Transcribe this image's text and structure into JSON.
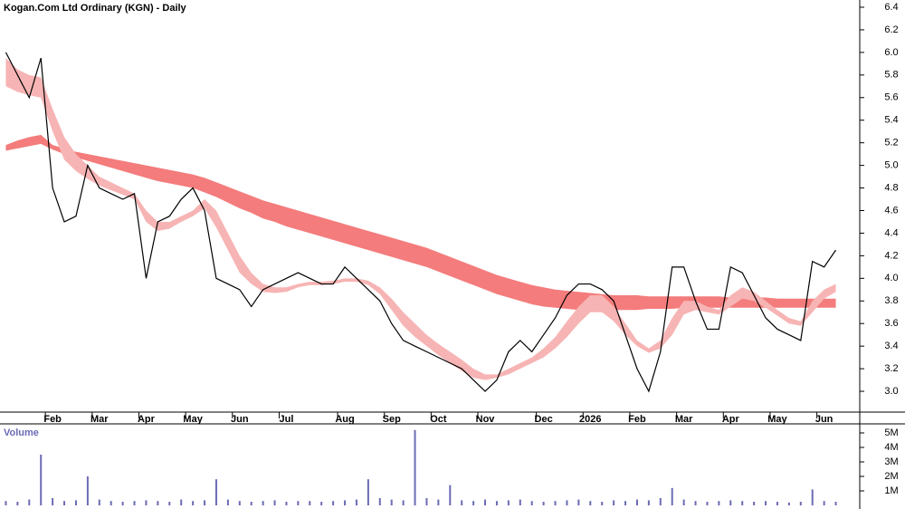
{
  "chart_data": [
    {
      "type": "line",
      "title": "Kogan.Com Ltd Ordinary (KGN) - Daily",
      "categories": [
        null,
        null,
        null,
        null,
        "Feb",
        null,
        null,
        null,
        "Mar",
        null,
        null,
        null,
        "Apr",
        null,
        null,
        null,
        "May",
        null,
        null,
        null,
        "Jun",
        null,
        null,
        null,
        "Jul",
        null,
        null,
        null,
        null,
        "Aug",
        null,
        null,
        null,
        "Sep",
        null,
        null,
        null,
        "Oct",
        null,
        null,
        null,
        "Nov",
        null,
        null,
        null,
        null,
        "Dec",
        null,
        null,
        null,
        "2026",
        null,
        null,
        null,
        "Feb",
        null,
        null,
        null,
        "Mar",
        null,
        null,
        null,
        "Apr",
        null,
        null,
        null,
        "May",
        null,
        null,
        null,
        "Jun",
        null
      ],
      "series": [
        {
          "color": "#000000",
          "values": [
            6.0,
            5.8,
            5.6,
            5.95,
            4.8,
            4.5,
            4.55,
            5.0,
            4.8,
            4.75,
            4.7,
            4.75,
            4.0,
            4.5,
            4.55,
            4.7,
            4.8,
            4.6,
            4.0,
            3.95,
            3.9,
            3.75,
            3.9,
            3.95,
            4.0,
            4.05,
            4.0,
            3.95,
            3.95,
            4.1,
            4.0,
            3.9,
            3.8,
            3.6,
            3.45,
            3.4,
            3.35,
            3.3,
            3.25,
            3.2,
            3.1,
            3.0,
            3.1,
            3.35,
            3.45,
            3.35,
            3.5,
            3.65,
            3.85,
            3.95,
            3.95,
            3.9,
            3.8,
            3.5,
            3.2,
            3.0,
            3.35,
            4.1,
            4.1,
            3.8,
            3.55,
            3.55,
            4.1,
            4.05,
            3.85,
            3.65,
            3.55,
            3.5,
            3.45,
            4.15,
            4.1,
            4.25
          ]
        }
      ],
      "bands": [
        {
          "color": "#f47c7c",
          "upper": [
            5.18,
            5.22,
            5.25,
            5.27,
            5.18,
            5.15,
            5.12,
            5.1,
            5.08,
            5.06,
            5.04,
            5.02,
            5.0,
            4.98,
            4.96,
            4.94,
            4.92,
            4.89,
            4.85,
            4.81,
            4.77,
            4.73,
            4.69,
            4.66,
            4.63,
            4.6,
            4.57,
            4.54,
            4.51,
            4.48,
            4.45,
            4.42,
            4.39,
            4.36,
            4.33,
            4.3,
            4.27,
            4.23,
            4.19,
            4.15,
            4.11,
            4.07,
            4.03,
            4.0,
            3.97,
            3.94,
            3.92,
            3.9,
            3.89,
            3.88,
            3.87,
            3.86,
            3.85,
            3.85,
            3.85,
            3.84,
            3.84,
            3.84,
            3.84,
            3.84,
            3.84,
            3.84,
            3.83,
            3.83,
            3.83,
            3.83,
            3.82,
            3.82,
            3.82,
            3.82,
            3.82,
            3.82
          ],
          "lower": [
            5.13,
            5.15,
            5.17,
            5.19,
            5.14,
            5.1,
            5.07,
            5.04,
            5.01,
            4.98,
            4.95,
            4.92,
            4.89,
            4.86,
            4.84,
            4.82,
            4.8,
            4.76,
            4.72,
            4.67,
            4.62,
            4.58,
            4.53,
            4.5,
            4.46,
            4.43,
            4.4,
            4.37,
            4.34,
            4.31,
            4.28,
            4.25,
            4.22,
            4.19,
            4.16,
            4.13,
            4.1,
            4.06,
            4.02,
            3.98,
            3.94,
            3.9,
            3.86,
            3.83,
            3.8,
            3.77,
            3.75,
            3.74,
            3.73,
            3.72,
            3.72,
            3.72,
            3.72,
            3.72,
            3.72,
            3.73,
            3.73,
            3.73,
            3.74,
            3.74,
            3.74,
            3.74,
            3.74,
            3.74,
            3.74,
            3.74,
            3.74,
            3.74,
            3.74,
            3.74,
            3.74,
            3.74
          ]
        },
        {
          "color": "#f7b4b4",
          "upper": [
            5.95,
            5.85,
            5.8,
            5.78,
            5.5,
            5.25,
            5.1,
            5.0,
            4.9,
            4.85,
            4.8,
            4.75,
            4.6,
            4.5,
            4.5,
            4.55,
            4.6,
            4.7,
            4.6,
            4.4,
            4.2,
            4.05,
            3.95,
            3.92,
            3.92,
            3.95,
            3.97,
            3.97,
            3.98,
            4.0,
            4.0,
            3.98,
            3.92,
            3.82,
            3.7,
            3.6,
            3.5,
            3.42,
            3.35,
            3.28,
            3.2,
            3.15,
            3.15,
            3.2,
            3.25,
            3.3,
            3.38,
            3.48,
            3.62,
            3.75,
            3.85,
            3.85,
            3.75,
            3.6,
            3.45,
            3.38,
            3.45,
            3.65,
            3.8,
            3.8,
            3.75,
            3.72,
            3.85,
            3.92,
            3.88,
            3.8,
            3.72,
            3.65,
            3.62,
            3.8,
            3.9,
            3.95
          ],
          "lower": [
            5.7,
            5.65,
            5.62,
            5.6,
            5.3,
            5.05,
            4.95,
            4.88,
            4.82,
            4.78,
            4.74,
            4.7,
            4.5,
            4.42,
            4.44,
            4.5,
            4.55,
            4.62,
            4.45,
            4.25,
            4.05,
            3.95,
            3.88,
            3.87,
            3.88,
            3.92,
            3.94,
            3.94,
            3.95,
            3.97,
            3.97,
            3.94,
            3.86,
            3.72,
            3.58,
            3.48,
            3.4,
            3.32,
            3.25,
            3.18,
            3.12,
            3.1,
            3.12,
            3.15,
            3.2,
            3.25,
            3.3,
            3.38,
            3.48,
            3.6,
            3.7,
            3.7,
            3.62,
            3.5,
            3.4,
            3.34,
            3.38,
            3.5,
            3.68,
            3.72,
            3.7,
            3.68,
            3.75,
            3.82,
            3.8,
            3.74,
            3.67,
            3.6,
            3.58,
            3.7,
            3.82,
            3.88
          ]
        }
      ],
      "ylim": [
        2.816,
        6.464
      ],
      "yticks": [
        {
          "value": 3,
          "label": "3.0"
        },
        3.2,
        3.4,
        3.6,
        3.8,
        {
          "value": 4,
          "label": "4.0"
        },
        4.2,
        4.4,
        4.6,
        4.8,
        {
          "value": 5,
          "label": "5.0"
        },
        5.2,
        5.4,
        5.6,
        5.8,
        {
          "value": 6,
          "label": "6.0"
        },
        6.2,
        6.4
      ]
    },
    {
      "type": "bar",
      "title": "Volume",
      "color": "#6b6bb5",
      "values": [
        300000,
        250000,
        400000,
        3500000,
        500000,
        300000,
        350000,
        2000000,
        400000,
        300000,
        250000,
        300000,
        350000,
        300000,
        250000,
        400000,
        300000,
        350000,
        1800000,
        400000,
        300000,
        250000,
        300000,
        350000,
        250000,
        300000,
        300000,
        250000,
        300000,
        350000,
        400000,
        1800000,
        500000,
        400000,
        350000,
        5200000,
        500000,
        400000,
        1400000,
        350000,
        300000,
        400000,
        300000,
        350000,
        400000,
        300000,
        250000,
        300000,
        350000,
        400000,
        300000,
        250000,
        350000,
        300000,
        400000,
        350000,
        500000,
        1200000,
        400000,
        300000,
        250000,
        300000,
        350000,
        300000,
        250000,
        300000,
        250000,
        200000,
        250000,
        1100000,
        300000,
        250000
      ],
      "ylim": [
        0,
        5500000
      ],
      "yticks": [
        {
          "value": 1000000,
          "label": "1M"
        },
        {
          "value": 2000000,
          "label": "2M"
        },
        {
          "value": 3000000,
          "label": "3M"
        },
        {
          "value": 4000000,
          "label": "4M"
        },
        {
          "value": 5000000,
          "label": "5M"
        }
      ]
    }
  ]
}
